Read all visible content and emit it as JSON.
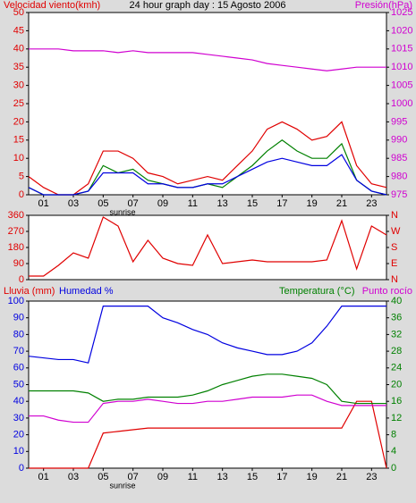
{
  "chart_data": [
    {
      "type": "line",
      "title": "24 hour graph day : 15 Agosto 2006",
      "labels": [
        {
          "text": "Velocidad viento(kmh)",
          "color": "#e00000"
        },
        {
          "text": "Presión(hPa)",
          "color": "#d000d0"
        }
      ],
      "annotation": "sunrise",
      "x": [
        0,
        1,
        2,
        3,
        4,
        5,
        6,
        7,
        8,
        9,
        10,
        11,
        12,
        13,
        14,
        15,
        16,
        17,
        18,
        19,
        20,
        21,
        22,
        23,
        24
      ],
      "xlim": [
        0,
        24
      ],
      "xticks": [
        {
          "value": 1,
          "label": "01"
        },
        {
          "value": 3,
          "label": "03"
        },
        {
          "value": 5,
          "label": "05"
        },
        {
          "value": 7,
          "label": "07"
        },
        {
          "value": 9,
          "label": "09"
        },
        {
          "value": 11,
          "label": "11"
        },
        {
          "value": 13,
          "label": "13"
        },
        {
          "value": 15,
          "label": "15"
        },
        {
          "value": 17,
          "label": "17"
        },
        {
          "value": 19,
          "label": "19"
        },
        {
          "value": 21,
          "label": "21"
        },
        {
          "value": 23,
          "label": "23"
        }
      ],
      "ylim": [
        0,
        50
      ],
      "yticks": [
        0,
        5,
        10,
        15,
        20,
        25,
        30,
        35,
        40,
        45,
        50
      ],
      "ytick_color": "#e00000",
      "y2lim": [
        975,
        1025
      ],
      "y2ticks": [
        975,
        980,
        985,
        990,
        995,
        1000,
        1005,
        1010,
        1015,
        1020,
        1025
      ],
      "y2tick_color": "#d000d0",
      "series": [
        {
          "color": "#e00000",
          "values": [
            5,
            2,
            0,
            0,
            3,
            12,
            12,
            10,
            6,
            5,
            3,
            4,
            5,
            4,
            8,
            12,
            18,
            20,
            18,
            15,
            16,
            20,
            8,
            3,
            2
          ]
        },
        {
          "color": "#008000",
          "values": [
            2,
            0,
            0,
            0,
            1,
            8,
            6,
            7,
            4,
            3,
            2,
            2,
            3,
            2,
            5,
            8,
            12,
            15,
            12,
            10,
            10,
            14,
            4,
            1,
            0
          ]
        },
        {
          "color": "#0000e0",
          "values": [
            2,
            0,
            0,
            0,
            1,
            6,
            6,
            6,
            3,
            3,
            2,
            2,
            3,
            3,
            5,
            7,
            9,
            10,
            9,
            8,
            8,
            11,
            4,
            1,
            0
          ]
        },
        {
          "color": "#d000d0",
          "axis": "y2",
          "values": [
            1015,
            1015,
            1015,
            1014.5,
            1014.5,
            1014.5,
            1014,
            1014.5,
            1014,
            1014,
            1014,
            1014,
            1013.5,
            1013,
            1012.5,
            1012,
            1011,
            1010.5,
            1010,
            1009.5,
            1009,
            1009.5,
            1010,
            1010,
            1010
          ]
        }
      ]
    },
    {
      "type": "line",
      "x": [
        0,
        1,
        2,
        3,
        4,
        5,
        6,
        7,
        8,
        9,
        10,
        11,
        12,
        13,
        14,
        15,
        16,
        17,
        18,
        19,
        20,
        21,
        22,
        23,
        24
      ],
      "xlim": [
        0,
        24
      ],
      "ylim": [
        0,
        360
      ],
      "yticks": [
        0,
        90,
        180,
        270,
        360
      ],
      "ytick_color": "#e00000",
      "y2lim": [
        0,
        360
      ],
      "y2ticks": [
        {
          "value": 0,
          "label": "N"
        },
        {
          "value": 90,
          "label": "E"
        },
        {
          "value": 180,
          "label": "S"
        },
        {
          "value": 270,
          "label": "W"
        },
        {
          "value": 360,
          "label": "N"
        }
      ],
      "y2tick_color": "#e00000",
      "series": [
        {
          "color": "#e00000",
          "values": [
            20,
            20,
            80,
            150,
            120,
            350,
            300,
            100,
            220,
            120,
            90,
            80,
            250,
            90,
            100,
            110,
            100,
            100,
            100,
            100,
            110,
            330,
            60,
            300,
            250
          ]
        }
      ]
    },
    {
      "type": "line",
      "labels": [
        {
          "text": "Lluvia (mm)",
          "color": "#e00000"
        },
        {
          "text": "Humedad %",
          "color": "#0000e0"
        },
        {
          "text": "Temperatura (°C)",
          "color": "#008000"
        },
        {
          "text": "Punto rocío",
          "color": "#d000d0"
        }
      ],
      "annotation": "sunrise",
      "x": [
        0,
        1,
        2,
        3,
        4,
        5,
        6,
        7,
        8,
        9,
        10,
        11,
        12,
        13,
        14,
        15,
        16,
        17,
        18,
        19,
        20,
        21,
        22,
        23,
        24
      ],
      "xlim": [
        0,
        24
      ],
      "xticks": [
        {
          "value": 1,
          "label": "01"
        },
        {
          "value": 3,
          "label": "03"
        },
        {
          "value": 5,
          "label": "05"
        },
        {
          "value": 7,
          "label": "07"
        },
        {
          "value": 9,
          "label": "09"
        },
        {
          "value": 11,
          "label": "11"
        },
        {
          "value": 13,
          "label": "13"
        },
        {
          "value": 15,
          "label": "15"
        },
        {
          "value": 17,
          "label": "17"
        },
        {
          "value": 19,
          "label": "19"
        },
        {
          "value": 21,
          "label": "21"
        },
        {
          "value": 23,
          "label": "23"
        }
      ],
      "ylim": [
        0,
        100
      ],
      "yticks": [
        0,
        10,
        20,
        30,
        40,
        50,
        60,
        70,
        80,
        90,
        100
      ],
      "ytick_color": "#0000e0",
      "y2lim": [
        0,
        40
      ],
      "y2ticks": [
        0,
        4,
        8,
        12,
        16,
        20,
        24,
        28,
        32,
        36,
        40
      ],
      "y2tick_color": "#008000",
      "series": [
        {
          "color": "#0000e0",
          "values": [
            67,
            66,
            65,
            65,
            63,
            97,
            97,
            97,
            97,
            90,
            87,
            83,
            80,
            75,
            72,
            70,
            68,
            68,
            70,
            75,
            85,
            97,
            97,
            97,
            97
          ]
        },
        {
          "color": "#e00000",
          "values": [
            0,
            0,
            0,
            0,
            0,
            21,
            22,
            23,
            24,
            24,
            24,
            24,
            24,
            24,
            24,
            24,
            24,
            24,
            24,
            24,
            24,
            24,
            40,
            40,
            0
          ]
        },
        {
          "color": "#008000",
          "axis": "y2",
          "values": [
            18.5,
            18.5,
            18.5,
            18.5,
            18,
            16,
            16.5,
            16.5,
            17,
            17,
            17,
            17.5,
            18.5,
            20,
            21,
            22,
            22.5,
            22.5,
            22,
            21.5,
            20,
            16,
            15.5,
            15.5,
            15.5
          ]
        },
        {
          "color": "#d000d0",
          "axis": "y2",
          "values": [
            12.5,
            12.5,
            11.5,
            11,
            11,
            15.5,
            16,
            16,
            16.5,
            16,
            15.5,
            15.5,
            16,
            16,
            16.5,
            17,
            17,
            17,
            17.5,
            17.5,
            16,
            15,
            15,
            15,
            15
          ]
        }
      ]
    }
  ]
}
